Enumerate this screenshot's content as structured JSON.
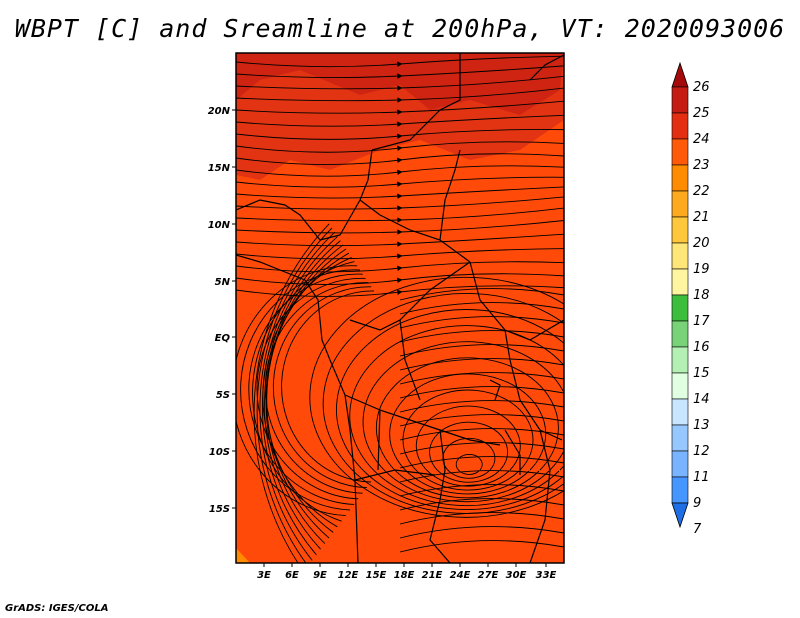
{
  "title": "WBPT [C] and Sreamline at 200hPa, VT: 2020093006",
  "credit": "GrADS: IGES/COLA",
  "map": {
    "lat_labels": [
      "20N",
      "15N",
      "10N",
      "5N",
      "EQ",
      "5S",
      "10S",
      "15S"
    ],
    "lon_labels": [
      "3E",
      "6E",
      "9E",
      "12E",
      "15E",
      "18E",
      "21E",
      "24E",
      "27E",
      "30E",
      "33E"
    ],
    "field_colors": {
      "base": "#ff4a0a",
      "warm": "#e23412",
      "hot": "#c81f12",
      "corner": "#ff8c00"
    }
  },
  "colorbar": {
    "levels": [
      "26",
      "25",
      "24",
      "23",
      "22",
      "21",
      "20",
      "19",
      "18",
      "17",
      "16",
      "15",
      "14",
      "13",
      "12",
      "11",
      "9",
      "7"
    ],
    "colors": [
      "#a50a0a",
      "#c41b12",
      "#e42e12",
      "#ff5a0a",
      "#ff8c00",
      "#ffaa1e",
      "#ffc83c",
      "#ffe678",
      "#fff5a0",
      "#3cbe3c",
      "#78d278",
      "#b4f0b4",
      "#e1ffe1",
      "#c8e6ff",
      "#96c8ff",
      "#78b4ff",
      "#4696ff",
      "#1e6ee6"
    ]
  }
}
